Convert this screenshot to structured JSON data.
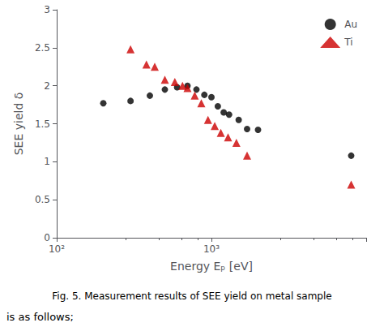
{
  "chart_data": {
    "type": "scatter",
    "xlabel": "Energy Eₚ [eV]",
    "ylabel": "SEE yield δ",
    "series": [
      {
        "name": "Au",
        "color": "#000000",
        "marker": "circle",
        "x": [
          200,
          300,
          400,
          500,
          600,
          700,
          800,
          900,
          1000,
          1100,
          1200,
          1300,
          1500,
          1700,
          2000,
          8000
        ],
        "values": [
          1.77,
          1.8,
          1.87,
          1.95,
          1.98,
          2.0,
          1.95,
          1.88,
          1.85,
          1.73,
          1.65,
          1.62,
          1.55,
          1.43,
          1.42,
          1.08
        ]
      },
      {
        "name": "Ti",
        "color": "#cc0000",
        "marker": "triangle",
        "x": [
          300,
          380,
          430,
          500,
          580,
          650,
          700,
          780,
          860,
          950,
          1050,
          1150,
          1280,
          1450,
          1700,
          8000
        ],
        "values": [
          2.48,
          2.28,
          2.25,
          2.08,
          2.05,
          2.0,
          1.97,
          1.87,
          1.77,
          1.55,
          1.47,
          1.38,
          1.32,
          1.25,
          1.08,
          0.7
        ]
      }
    ],
    "log": "x",
    "xlim": [
      100,
      10000
    ],
    "xticks": [
      {
        "value": 100,
        "label": "10²"
      },
      {
        "value": 1000,
        "label": "10³"
      }
    ],
    "ylim": [
      0,
      3
    ],
    "yticks": [
      0,
      0.5,
      1,
      1.5,
      2,
      2.5,
      3
    ],
    "grid": false,
    "legend": "upper right",
    "annotations": [
      "Fig. 5. Measurement results of SEE yield on metal sample",
      "is as follows;"
    ]
  }
}
